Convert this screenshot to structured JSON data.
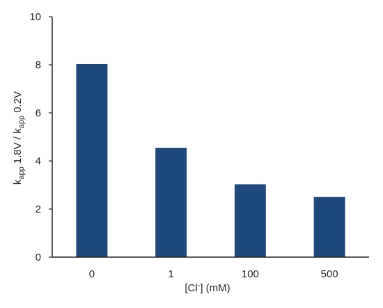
{
  "chart_data": {
    "type": "bar",
    "categories": [
      "0",
      "1",
      "100",
      "500"
    ],
    "values": [
      8.03,
      4.55,
      3.03,
      2.5
    ],
    "ylim": [
      0,
      10
    ],
    "yticks": [
      0,
      2,
      4,
      6,
      8,
      10
    ],
    "title": "",
    "xlabel": {
      "base": "[Cl",
      "sup": "-",
      "tail": "] (mM)"
    },
    "ylabel": {
      "k1": "k",
      "sub1": "app",
      "mid": " 1.8V / k",
      "sub2": "app",
      "end": " 0.2V"
    },
    "grid": false,
    "legend": "none",
    "bar_color": "#1F497D",
    "axis_color": "#222222"
  }
}
